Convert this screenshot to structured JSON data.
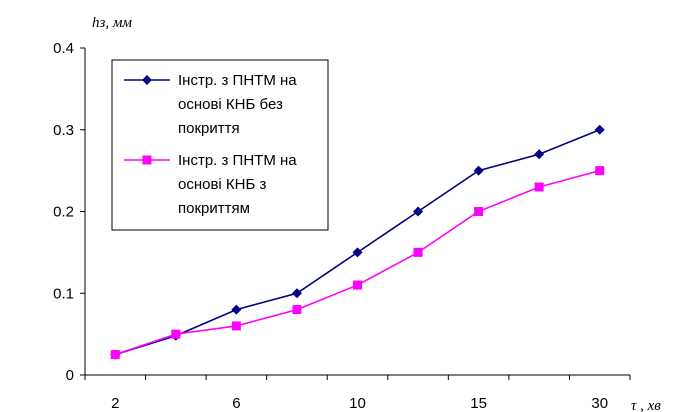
{
  "chart_data": {
    "type": "line",
    "title": "",
    "ylabel": "hз, мм",
    "xlabel": "τ , хв",
    "categories": [
      "2",
      "",
      "6",
      "",
      "10",
      "",
      "15",
      "",
      "30"
    ],
    "ylim": [
      0,
      0.4
    ],
    "yticks": [
      "0",
      "0.1",
      "0.2",
      "0.3",
      "0.4"
    ],
    "grid": false,
    "legend_position": "top-left",
    "series": [
      {
        "name_lines": [
          "Інстр. з ПНТМ на",
          "основі КНБ без",
          "покриття"
        ],
        "color": "#000080",
        "marker": "diamond",
        "values": [
          0.025,
          0.048,
          0.08,
          0.1,
          0.15,
          0.2,
          0.25,
          0.27,
          0.3
        ]
      },
      {
        "name_lines": [
          "Інстр. з ПНТМ на",
          "основі КНБ з",
          "покриттям"
        ],
        "color": "#ff00ff",
        "marker": "square",
        "values": [
          0.025,
          0.05,
          0.06,
          0.08,
          0.11,
          0.15,
          0.2,
          0.23,
          0.25
        ]
      }
    ]
  }
}
